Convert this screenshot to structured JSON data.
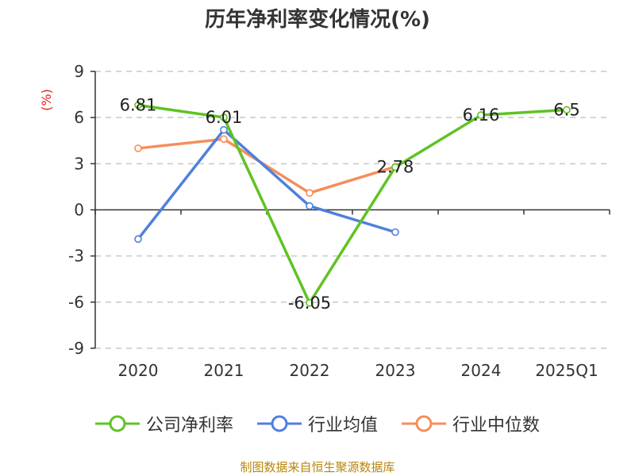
{
  "chart_data": {
    "type": "line",
    "title": "历年净利率变化情况(%)",
    "ylabel": "(%)",
    "categories": [
      "2020",
      "2021",
      "2022",
      "2023",
      "2024",
      "2025Q1"
    ],
    "ylim": [
      -9,
      9
    ],
    "yticks": [
      9,
      6,
      3,
      0,
      -3,
      -6,
      -9
    ],
    "grid": true,
    "legend_position": "bottom",
    "series": [
      {
        "name": "公司净利率",
        "color": "#5fc324",
        "values": [
          6.81,
          6.01,
          -6.05,
          2.78,
          6.16,
          6.5
        ],
        "labels": [
          "6.81",
          "6.01",
          "-6.05",
          "2.78",
          "6.16",
          "6.5"
        ]
      },
      {
        "name": "行业均值",
        "color": "#4f80dc",
        "values": [
          -1.9,
          5.2,
          0.25,
          -1.45,
          null,
          null
        ]
      },
      {
        "name": "行业中位数",
        "color": "#f58e5a",
        "values": [
          4.0,
          4.6,
          1.1,
          2.8,
          null,
          null
        ]
      }
    ]
  },
  "source": "制图数据来自恒生聚源数据库"
}
